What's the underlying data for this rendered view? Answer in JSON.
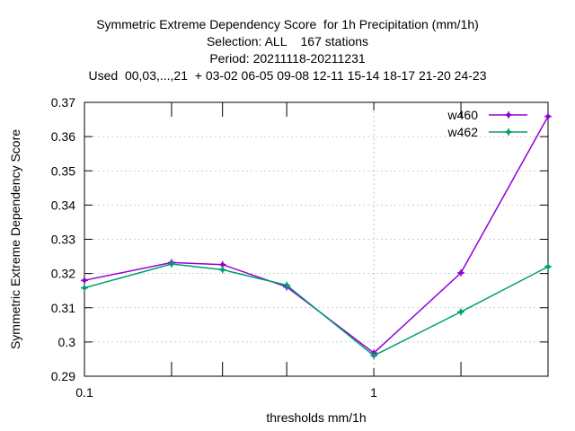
{
  "chart_data": {
    "type": "line",
    "title_lines": [
      "Symmetric Extreme Dependency Score  for 1h Precipitation (mm/1h)",
      "Selection: ALL    167 stations",
      "Period: 20211118-20211231",
      "Used  00,03,...,21  + 03-02 06-05 09-08 12-11 15-14 18-17 21-20 24-23"
    ],
    "xlabel": "thresholds mm/1h",
    "ylabel": "Symmetric Extreme Dependency Score",
    "xscale": "log",
    "xlim": [
      0.1,
      4
    ],
    "ylim": [
      0.29,
      0.37
    ],
    "yticks": [
      0.29,
      0.3,
      0.31,
      0.32,
      0.33,
      0.34,
      0.35,
      0.36,
      0.37
    ],
    "ytick_labels": [
      "0.29",
      "0.3",
      "0.31",
      "0.32",
      "0.33",
      "0.34",
      "0.35",
      "0.36",
      "0.37"
    ],
    "xticks_major": [
      0.1,
      1
    ],
    "xtick_labels": [
      "0.1",
      "1"
    ],
    "xticks_minor": [
      0.2,
      0.3,
      0.5,
      2,
      4
    ],
    "grid": true,
    "legend_position": "top-right",
    "series": [
      {
        "name": "w460",
        "color": "#9400d3",
        "x": [
          0.1,
          0.2,
          0.3,
          0.5,
          1,
          2,
          4
        ],
        "y": [
          0.318,
          0.3232,
          0.3226,
          0.3161,
          0.2968,
          0.3202,
          0.3659
        ]
      },
      {
        "name": "w462",
        "color": "#009e73",
        "x": [
          0.1,
          0.2,
          0.3,
          0.5,
          1,
          2,
          4
        ],
        "y": [
          0.3158,
          0.3228,
          0.3211,
          0.3166,
          0.296,
          0.3088,
          0.322
        ]
      }
    ]
  }
}
